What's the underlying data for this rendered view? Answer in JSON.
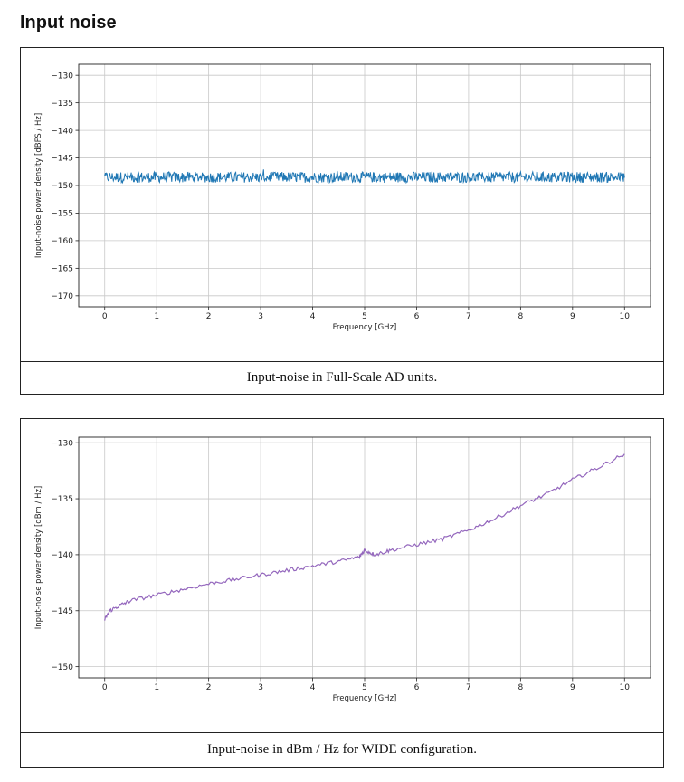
{
  "page": {
    "section_title": "Input noise"
  },
  "figures": [
    {
      "caption": "Input-noise in Full-Scale AD units."
    },
    {
      "caption": "Input-noise in dBm / Hz for WIDE configuration."
    }
  ],
  "chart_data": [
    {
      "type": "line",
      "xlabel": "Frequency [GHz]",
      "ylabel": "Input-noise power density [dBFS / Hz]",
      "xlim": [
        -0.5,
        10.5
      ],
      "ylim": [
        -172,
        -128
      ],
      "xticks": [
        0,
        1,
        2,
        3,
        4,
        5,
        6,
        7,
        8,
        9,
        10
      ],
      "yticks": [
        -130,
        -135,
        -140,
        -145,
        -150,
        -155,
        -160,
        -165,
        -170
      ],
      "grid": true,
      "series": [
        {
          "color": "#1f77b4",
          "x": [
            0,
            10
          ],
          "y_mean": -148.5,
          "y_min": -149.8,
          "y_max": -147.2,
          "description_of_shape": "dense noise band"
        }
      ]
    },
    {
      "type": "line",
      "xlabel": "Frequency [GHz]",
      "ylabel": "Input-noise power density [dBm / Hz]",
      "xlim": [
        -0.5,
        10.5
      ],
      "ylim": [
        -151,
        -129.5
      ],
      "xticks": [
        0,
        1,
        2,
        3,
        4,
        5,
        6,
        7,
        8,
        9,
        10
      ],
      "yticks": [
        -130,
        -135,
        -140,
        -145,
        -150
      ],
      "grid": true,
      "series": [
        {
          "color": "#9467bd",
          "x": [
            0,
            0.1,
            0.3,
            0.5,
            1,
            1.5,
            2,
            2.5,
            3,
            3.5,
            4,
            4.5,
            4.9,
            5.0,
            5.2,
            5.5,
            6,
            6.5,
            7,
            7.5,
            8,
            8.5,
            9,
            9.5,
            10
          ],
          "y": [
            -145.8,
            -145.0,
            -144.5,
            -144.1,
            -143.6,
            -143.1,
            -142.6,
            -142.2,
            -141.8,
            -141.4,
            -141.0,
            -140.6,
            -140.2,
            -139.6,
            -140.0,
            -139.6,
            -139.1,
            -138.6,
            -137.8,
            -136.8,
            -135.6,
            -134.6,
            -133.3,
            -132.2,
            -131.0
          ]
        }
      ]
    }
  ]
}
